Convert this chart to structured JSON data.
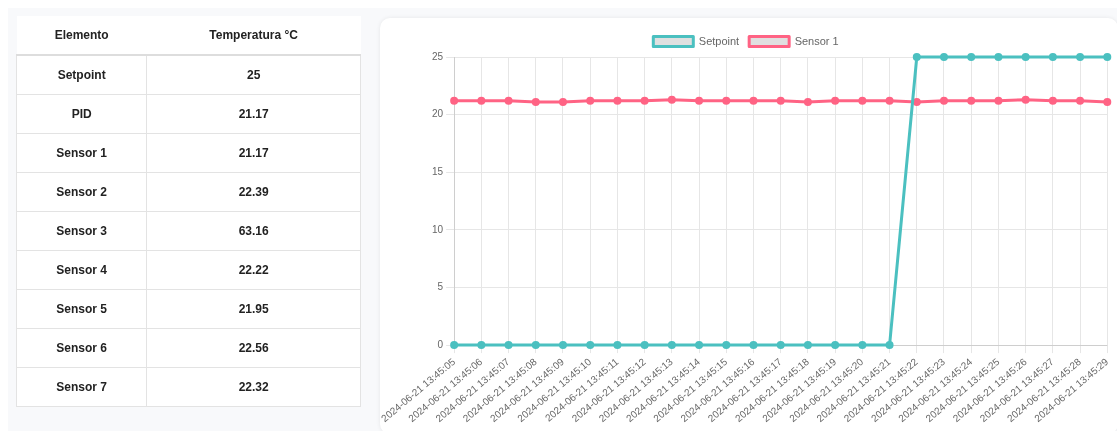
{
  "chart_data": [
    {
      "type": "other",
      "xlabel": "Elemento",
      "ylabel": "Temperatura °C",
      "categories": [
        "Setpoint",
        "PID",
        "Sensor 1",
        "Sensor 2",
        "Sensor 3",
        "Sensor 4",
        "Sensor 5",
        "Sensor 6",
        "Sensor 7"
      ],
      "values": [
        25,
        21.17,
        21.17,
        22.39,
        63.16,
        22.22,
        21.95,
        22.56,
        22.32
      ],
      "data_labels": true
    },
    {
      "type": "line",
      "categories": [
        "2024-06-21 13:45:05",
        "2024-06-21 13:45:06",
        "2024-06-21 13:45:07",
        "2024-06-21 13:45:08",
        "2024-06-21 13:45:09",
        "2024-06-21 13:45:10",
        "2024-06-21 13:45:11",
        "2024-06-21 13:45:12",
        "2024-06-21 13:45:13",
        "2024-06-21 13:45:14",
        "2024-06-21 13:45:15",
        "2024-06-21 13:45:16",
        "2024-06-21 13:45:17",
        "2024-06-21 13:45:18",
        "2024-06-21 13:45:19",
        "2024-06-21 13:45:20",
        "2024-06-21 13:45:21",
        "2024-06-21 13:45:22",
        "2024-06-21 13:45:23",
        "2024-06-21 13:45:24",
        "2024-06-21 13:45:25",
        "2024-06-21 13:45:26",
        "2024-06-21 13:45:27",
        "2024-06-21 13:45:28",
        "2024-06-21 13:45:29"
      ],
      "series": [
        {
          "name": "Setpoint",
          "color": "#4bc0c0",
          "values": [
            0,
            0,
            0,
            0,
            0,
            0,
            0,
            0,
            0,
            0,
            0,
            0,
            0,
            0,
            0,
            0,
            0,
            25,
            25,
            25,
            25,
            25,
            25,
            25,
            25
          ]
        },
        {
          "name": "Sensor 1",
          "color": "#ff6384",
          "values": [
            21.2,
            21.2,
            21.2,
            21.1,
            21.1,
            21.2,
            21.2,
            21.2,
            21.3,
            21.2,
            21.2,
            21.2,
            21.2,
            21.1,
            21.2,
            21.2,
            21.2,
            21.1,
            21.2,
            21.2,
            21.2,
            21.3,
            21.2,
            21.2,
            21.1
          ]
        }
      ],
      "ylim": [
        0,
        25
      ],
      "yticks": [
        0,
        5,
        10,
        15,
        20,
        25
      ],
      "grid": true,
      "legend": "top",
      "marker": "circle",
      "line_style": "solid"
    }
  ]
}
